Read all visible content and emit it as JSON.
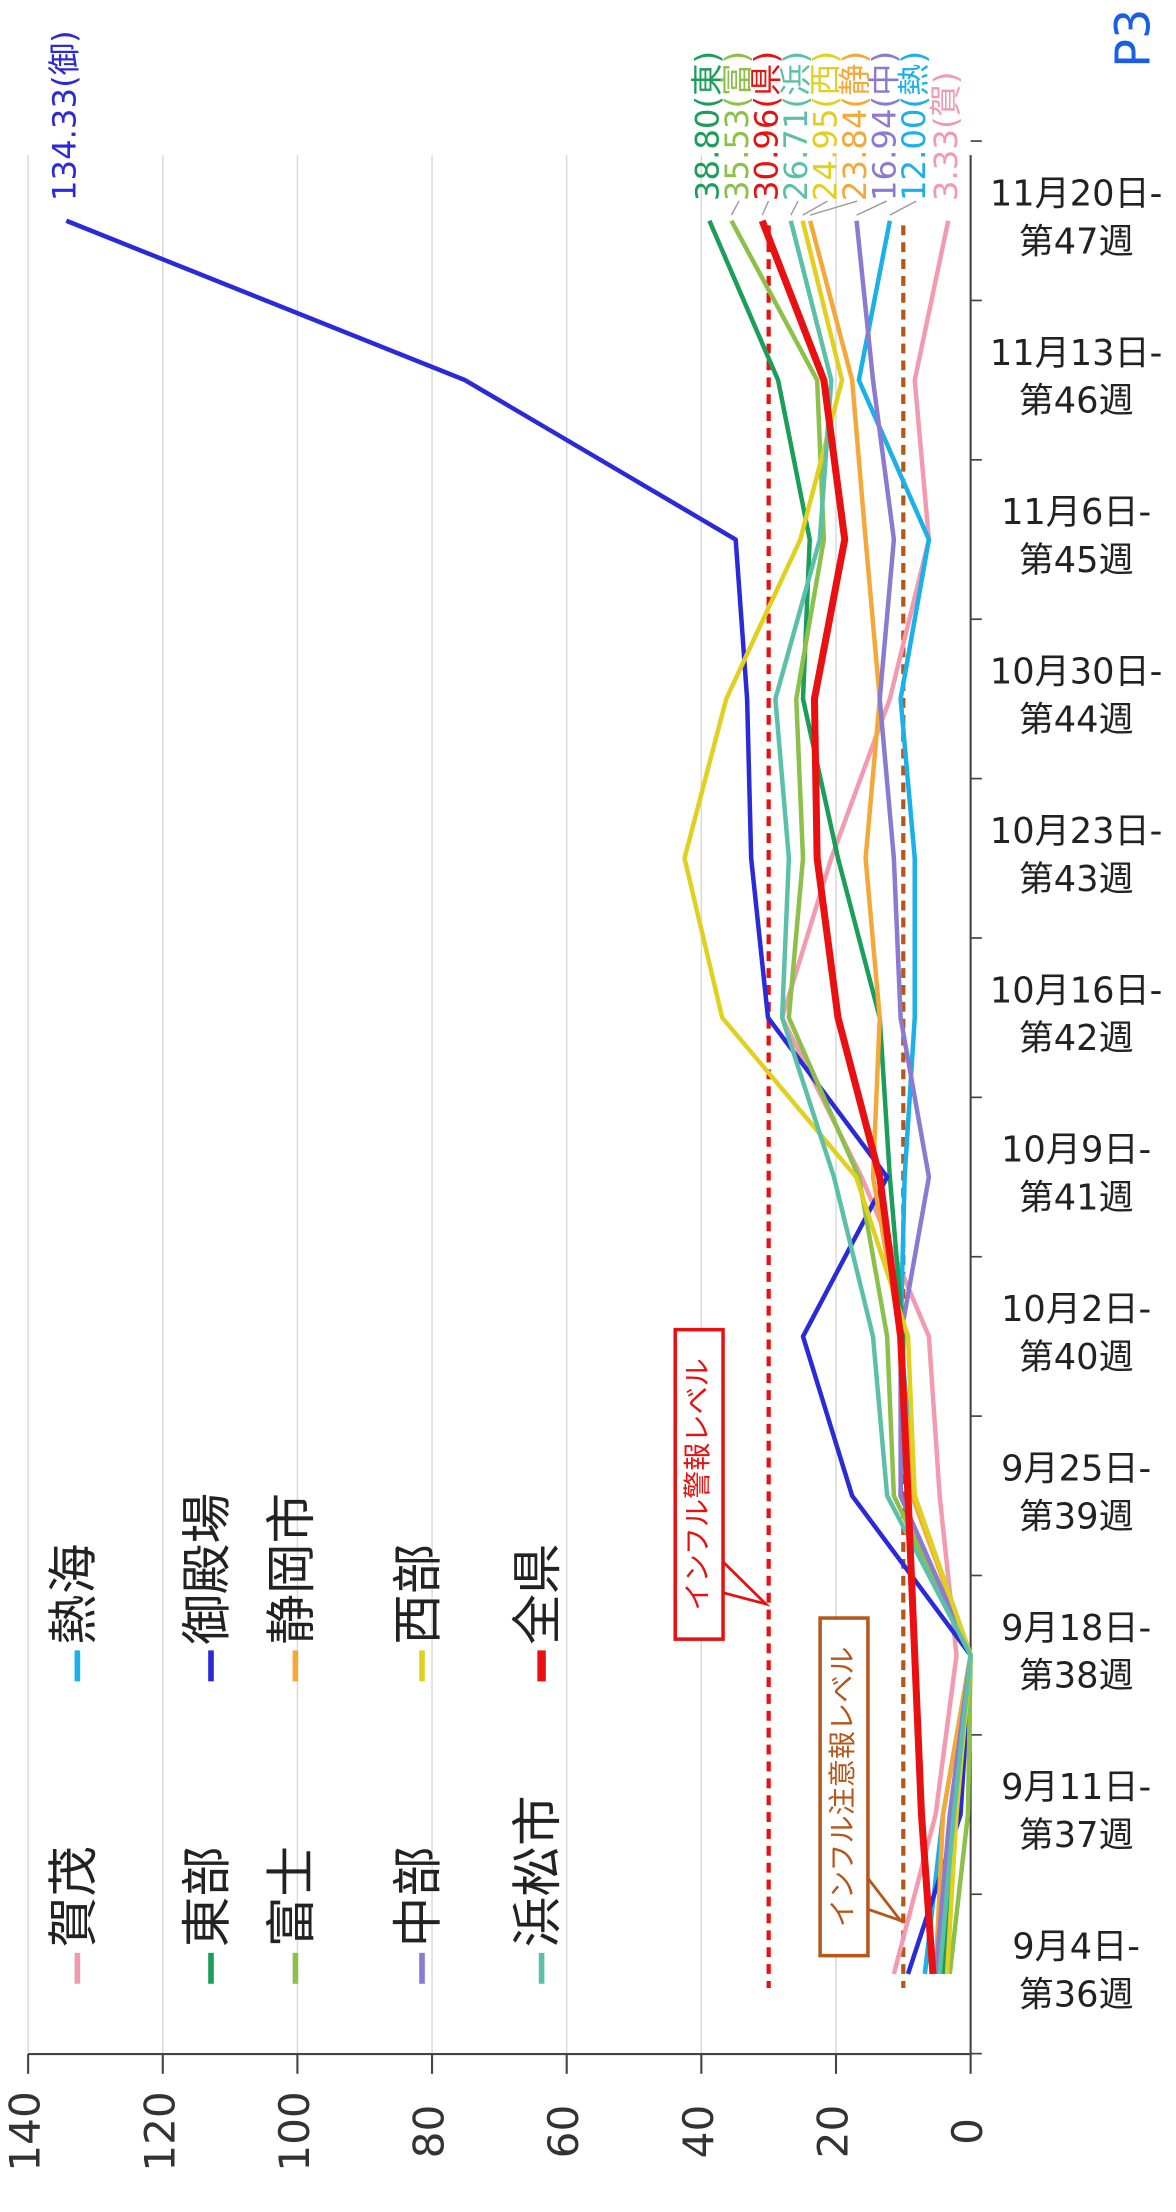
{
  "chart_data": {
    "type": "line",
    "categories": [
      [
        "9月4日-",
        "第36週"
      ],
      [
        "9月11日-",
        "第37週"
      ],
      [
        "9月18日-",
        "第38週"
      ],
      [
        "9月25日-",
        "第39週"
      ],
      [
        "10月2日-",
        "第40週"
      ],
      [
        "10月9日-",
        "第41週"
      ],
      [
        "10月16日-",
        "第42週"
      ],
      [
        "10月23日-",
        "第43週"
      ],
      [
        "10月30日-",
        "第44週"
      ],
      [
        "11月6日-",
        "第45週"
      ],
      [
        "11月13日-",
        "第46週"
      ],
      [
        "11月20日-",
        "第47週"
      ]
    ],
    "ylim": [
      0,
      140
    ],
    "yticks": [
      0,
      20,
      40,
      60,
      80,
      100,
      120,
      140
    ],
    "grid": true,
    "annotation": "P3",
    "reference_lines": [
      {
        "value": 30,
        "label": "インフル警報レベル",
        "color": "#e81010"
      },
      {
        "value": 10,
        "label": "インフル注意報レベル",
        "color": "#b5561a"
      }
    ],
    "series": [
      {
        "name": "賀茂",
        "color": "#f29ab0",
        "values": [
          11.4,
          5.2,
          2.1,
          4.6,
          6.2,
          16.2,
          28,
          20.7,
          12,
          6.2,
          8.3,
          3.33
        ],
        "value_labels": [
          null,
          null,
          null,
          null,
          null,
          null,
          null,
          null,
          null,
          null,
          null,
          "3.33(賀)"
        ]
      },
      {
        "name": "熱海",
        "color": "#1ab0e8",
        "values": [
          6.8,
          4.1,
          0,
          8.3,
          10.4,
          9.8,
          8.3,
          8.3,
          10.4,
          6.2,
          16.6,
          12.0
        ],
        "value_labels": [
          null,
          null,
          null,
          null,
          null,
          null,
          null,
          null,
          null,
          null,
          null,
          "12.00(熱)"
        ]
      },
      {
        "name": "東部",
        "color": "#1a9e5a",
        "values": [
          4.1,
          2.1,
          0,
          10.4,
          10,
          12,
          13.5,
          19.7,
          24.9,
          23.9,
          28.6,
          38.8
        ],
        "value_labels": [
          null,
          null,
          null,
          null,
          null,
          null,
          null,
          null,
          null,
          null,
          null,
          "38.80(東)"
        ]
      },
      {
        "name": "御殿場",
        "color": "#2a2ad8",
        "values": [
          9.3,
          1.5,
          0,
          17.6,
          24.9,
          12.4,
          30.1,
          32.6,
          33.2,
          34.9,
          75.1,
          134.33
        ],
        "value_labels": [
          null,
          null,
          null,
          null,
          null,
          null,
          null,
          null,
          null,
          null,
          null,
          "134.33(御)"
        ]
      },
      {
        "name": "富士",
        "color": "#8cc04a",
        "values": [
          3.1,
          0.4,
          0,
          11.4,
          12.4,
          16.6,
          27,
          24.9,
          25.9,
          21.8,
          22.8,
          35.53
        ],
        "value_labels": [
          null,
          null,
          null,
          null,
          null,
          null,
          null,
          null,
          null,
          null,
          null,
          "35.53(富)"
        ]
      },
      {
        "name": "静岡市",
        "color": "#f5a83a",
        "values": [
          5.2,
          4.1,
          0,
          8.7,
          10.4,
          14.5,
          13.5,
          15.6,
          13.5,
          15.6,
          17.6,
          23.84
        ],
        "value_labels": [
          null,
          null,
          null,
          null,
          null,
          null,
          null,
          null,
          null,
          null,
          null,
          "23.84(静)"
        ]
      },
      {
        "name": "中部",
        "color": "#8a7ad0",
        "values": [
          5.2,
          3.1,
          0,
          10.4,
          10.4,
          6.2,
          10.4,
          11.4,
          13.5,
          11.4,
          14.5,
          16.94
        ],
        "value_labels": [
          null,
          null,
          null,
          null,
          null,
          null,
          null,
          null,
          null,
          null,
          null,
          "16.94(中)"
        ]
      },
      {
        "name": "西部",
        "color": "#e0d020",
        "values": [
          3.5,
          2.1,
          0,
          8.3,
          9.3,
          17,
          36.9,
          42.5,
          36.3,
          25.3,
          19.1,
          24.95
        ],
        "value_labels": [
          null,
          null,
          null,
          null,
          null,
          null,
          null,
          null,
          null,
          null,
          null,
          "24.95(西)"
        ]
      },
      {
        "name": "浜松市",
        "color": "#5cc0a8",
        "values": [
          4.6,
          2.5,
          0,
          12.4,
          14.5,
          20.3,
          28,
          27,
          29,
          22.4,
          20.7,
          26.71
        ],
        "value_labels": [
          null,
          null,
          null,
          null,
          null,
          null,
          null,
          null,
          null,
          null,
          null,
          "26.71(浜)"
        ]
      },
      {
        "name": "全県",
        "color": "#e81010",
        "values": [
          5.6,
          7.3,
          8.3,
          9.3,
          10.4,
          13.5,
          19.7,
          22.8,
          23.2,
          18.7,
          21.8,
          30.96
        ],
        "value_labels": [
          null,
          null,
          null,
          null,
          null,
          null,
          null,
          null,
          null,
          null,
          null,
          "30.96(県)"
        ]
      }
    ]
  }
}
